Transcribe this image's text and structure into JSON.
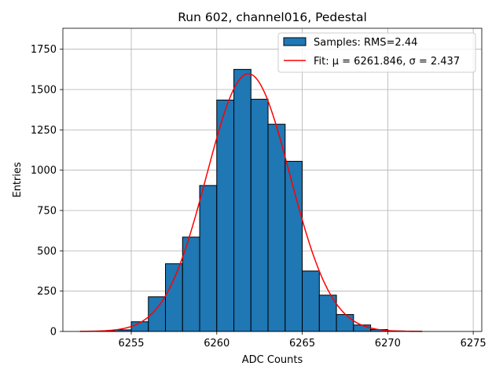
{
  "chart_data": {
    "type": "bar",
    "title": "Run 602, channel016, Pedestal",
    "xlabel": "ADC Counts",
    "ylabel": "Entries",
    "xlim": [
      6251,
      6275.5
    ],
    "ylim": [
      0,
      1880
    ],
    "xticks": [
      6255,
      6260,
      6265,
      6270,
      6275
    ],
    "yticks": [
      0,
      250,
      500,
      750,
      1000,
      1250,
      1500,
      1750
    ],
    "grid": true,
    "legend_position": "top-right",
    "histogram": {
      "name": "Samples: RMS=2.44",
      "bin_edges": [
        6253,
        6254,
        6255,
        6256,
        6257,
        6258,
        6259,
        6260,
        6261,
        6262,
        6263,
        6264,
        6265,
        6266,
        6267,
        6268,
        6269,
        6270,
        6271,
        6272,
        6273,
        6274
      ],
      "values": [
        2,
        10,
        60,
        215,
        420,
        585,
        905,
        1435,
        1625,
        1440,
        1285,
        1055,
        375,
        225,
        105,
        40,
        12,
        3,
        1,
        0,
        0
      ],
      "color": "#1f77b4",
      "edgecolor": "#000000"
    },
    "fit": {
      "name": "Fit: μ = 6261.846, σ = 2.437",
      "mu": 6261.846,
      "sigma": 2.437,
      "amplitude": 1598,
      "x_range": [
        6252,
        6272
      ],
      "color": "#ff0000"
    }
  }
}
